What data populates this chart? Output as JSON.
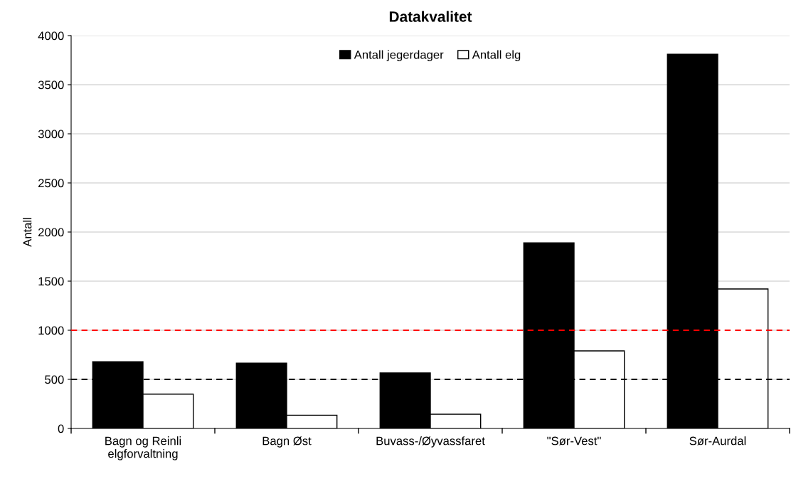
{
  "chart_data": {
    "type": "bar",
    "title": "Datakvalitet",
    "ylabel": "Antall",
    "categories": [
      "Bagn og Reinli\nelgforvaltning",
      "Bagn Øst",
      "Buvass-/Øyvassfaret",
      "\"Sør-Vest\"",
      "Sør-Aurdal"
    ],
    "series": [
      {
        "name": "Antall jegerdager",
        "color": "#000000",
        "values": [
          680,
          665,
          565,
          1890,
          3810
        ]
      },
      {
        "name": "Antall elg",
        "color": "#ffffff",
        "values": [
          350,
          135,
          145,
          790,
          1420
        ]
      }
    ],
    "ylim": [
      0,
      4000
    ],
    "yticks": [
      0,
      500,
      1000,
      1500,
      2000,
      2500,
      3000,
      3500,
      4000
    ],
    "ref_lines": [
      {
        "axis": "y",
        "value": 1000,
        "color": "#ff0000",
        "line_style": "dashed"
      },
      {
        "axis": "y",
        "value": 500,
        "color": "#000000",
        "line_style": "dashed"
      }
    ],
    "grid": "y",
    "legend": "top"
  }
}
